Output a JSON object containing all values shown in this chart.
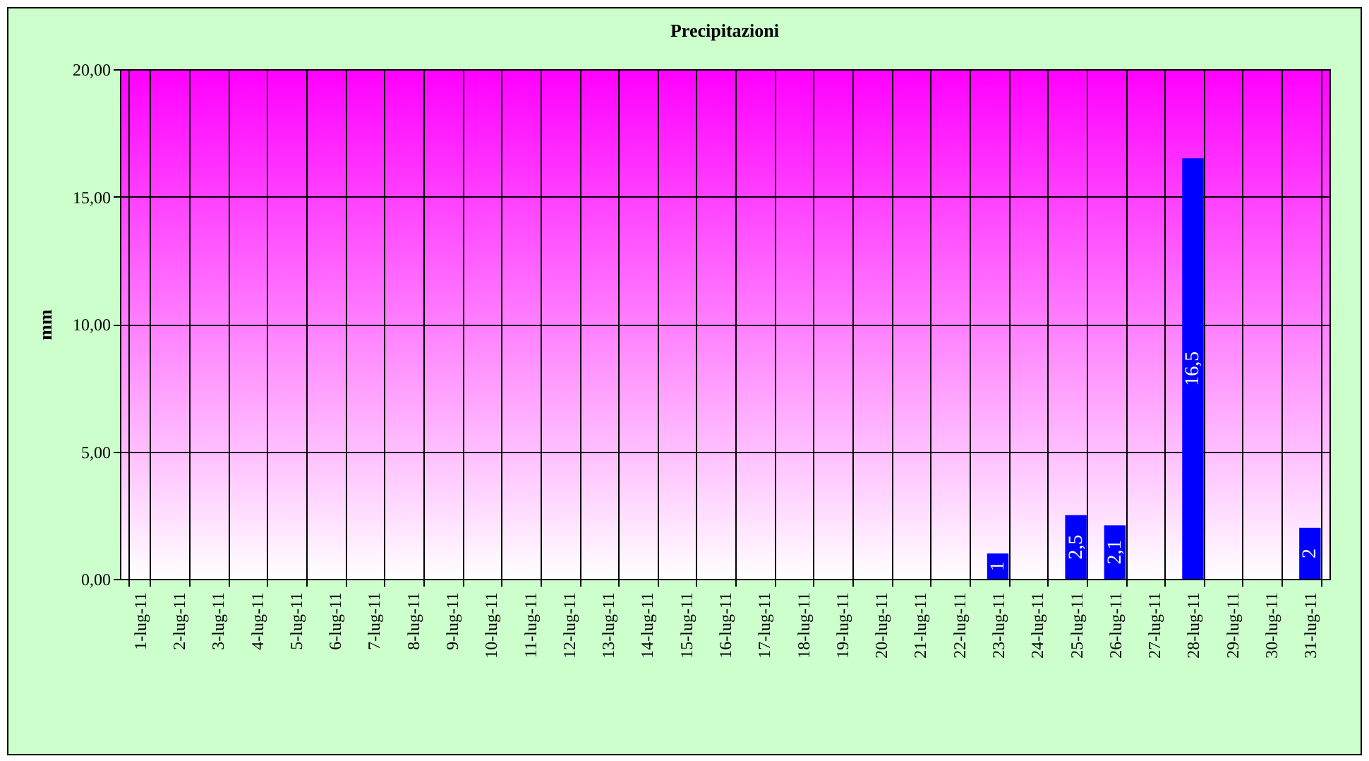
{
  "chart_data": {
    "type": "bar",
    "title": "Precipitazioni",
    "ylabel": "mm",
    "categories": [
      "1-lug-11",
      "2-lug-11",
      "3-lug-11",
      "4-lug-11",
      "5-lug-11",
      "6-lug-11",
      "7-lug-11",
      "8-lug-11",
      "9-lug-11",
      "10-lug-11",
      "11-lug-11",
      "12-lug-11",
      "13-lug-11",
      "14-lug-11",
      "15-lug-11",
      "16-lug-11",
      "17-lug-11",
      "18-lug-11",
      "19-lug-11",
      "20-lug-11",
      "21-lug-11",
      "22-lug-11",
      "23-lug-11",
      "24-lug-11",
      "25-lug-11",
      "26-lug-11",
      "27-lug-11",
      "28-lug-11",
      "29-lug-11",
      "30-lug-11",
      "31-lug-11"
    ],
    "values": [
      0,
      0,
      0,
      0,
      0,
      0,
      0,
      0,
      0,
      0,
      0,
      0,
      0,
      0,
      0,
      0,
      0,
      0,
      0,
      0,
      0,
      0,
      1,
      0,
      2.5,
      2.1,
      0,
      16.5,
      0,
      0,
      2
    ],
    "value_labels": [
      null,
      null,
      null,
      null,
      null,
      null,
      null,
      null,
      null,
      null,
      null,
      null,
      null,
      null,
      null,
      null,
      null,
      null,
      null,
      null,
      null,
      null,
      "1",
      null,
      "2,5",
      "2,1",
      null,
      "16,5",
      null,
      null,
      "2"
    ],
    "color": "#0000ff",
    "ylim": [
      0,
      20
    ],
    "yticks": [
      {
        "value": 0,
        "label": "0,00"
      },
      {
        "value": 5,
        "label": "5,00"
      },
      {
        "value": 10,
        "label": "10,00"
      },
      {
        "value": 15,
        "label": "15,00"
      },
      {
        "value": 20,
        "label": "20,00"
      }
    ],
    "grid": true
  }
}
